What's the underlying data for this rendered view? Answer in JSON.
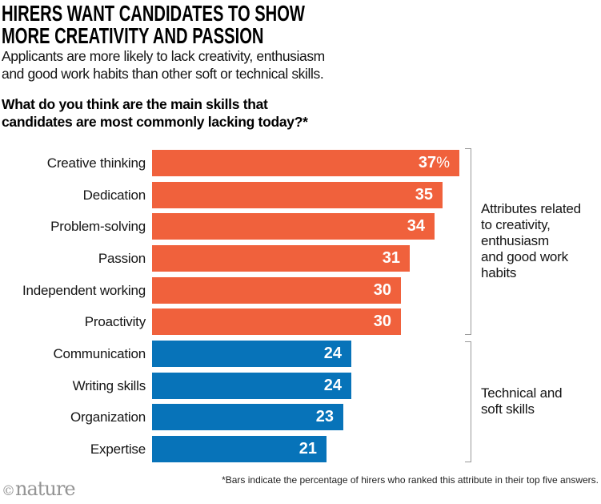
{
  "header": {
    "title": "HIRERS WANT CANDIDATES TO SHOW\nMORE CREATIVITY AND PASSION",
    "subtitle": "Applicants are more likely to lack creativity, enthusiasm\nand good work habits than other soft or technical skills.",
    "question": "What do you think are the main skills that\ncandidates are most commonly lacking today?*"
  },
  "chart_data": {
    "type": "bar",
    "orientation": "horizontal",
    "title": "What do you think are the main skills that candidates are most commonly lacking today?*",
    "categories": [
      "Creative thinking",
      "Dedication",
      "Problem-solving",
      "Passion",
      "Independent working",
      "Proactivity",
      "Communication",
      "Writing skills",
      "Organization",
      "Expertise"
    ],
    "values": [
      37,
      35,
      34,
      31,
      30,
      30,
      24,
      24,
      23,
      21
    ],
    "unit": "%",
    "first_value_suffix": "%",
    "value_labels_inside_bars": true,
    "xlim": [
      0,
      37
    ],
    "grid": false,
    "legend": "none",
    "groups": [
      {
        "name": "creativity-enthusiasm-habits",
        "label": "Attributes related\nto creativity,\nenthusiasm\nand good work\nhabits",
        "color": "#F0613C",
        "from_index": 0,
        "to_index": 5
      },
      {
        "name": "technical-soft-skills",
        "label": "Technical and\nsoft skills",
        "color": "#0773B9",
        "from_index": 6,
        "to_index": 9
      }
    ]
  },
  "footer": {
    "logo_prefix": "©",
    "logo_text": "nature",
    "footnote": "*Bars indicate the percentage of hirers who ranked this attribute in their top five answers."
  },
  "colors": {
    "orange": "#F0613C",
    "blue": "#0773B9",
    "bracket": "#999999",
    "text": "#141414",
    "logo_gray": "#949494",
    "value_text": "#FFFFFF"
  }
}
